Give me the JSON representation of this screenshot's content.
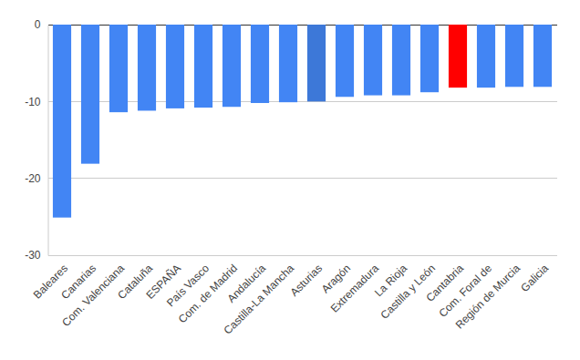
{
  "chart_data": {
    "type": "bar",
    "categories": [
      "Baleares",
      "Canarias",
      "Com. Valenciana",
      "Cataluña",
      "ESPAÑA",
      "País Vasco",
      "Com. de Madrid",
      "Andalucía",
      "Castilla-La Mancha",
      "Asturias",
      "Aragón",
      "Extremadura",
      "La Rioja",
      "Castilla y León",
      "Cantabria",
      "Com. Foral de",
      "Región de Murcia",
      "Galicia"
    ],
    "values": [
      -25.1,
      -18.1,
      -11.4,
      -11.2,
      -10.9,
      -10.8,
      -10.7,
      -10.2,
      -10.1,
      -10.0,
      -9.4,
      -9.2,
      -9.2,
      -8.8,
      -8.2,
      -8.2,
      -8.1,
      -8.1
    ],
    "colors": [
      "#4285f4",
      "#4285f4",
      "#4285f4",
      "#4285f4",
      "#4285f4",
      "#4285f4",
      "#4285f4",
      "#4285f4",
      "#4285f4",
      "#3d78d8",
      "#4285f4",
      "#4285f4",
      "#4285f4",
      "#4285f4",
      "#ff0000",
      "#4285f4",
      "#4285f4",
      "#4285f4"
    ],
    "ylim": [
      -30,
      0
    ],
    "yticks": [
      0,
      -10,
      -20,
      -30
    ],
    "grid": true
  }
}
